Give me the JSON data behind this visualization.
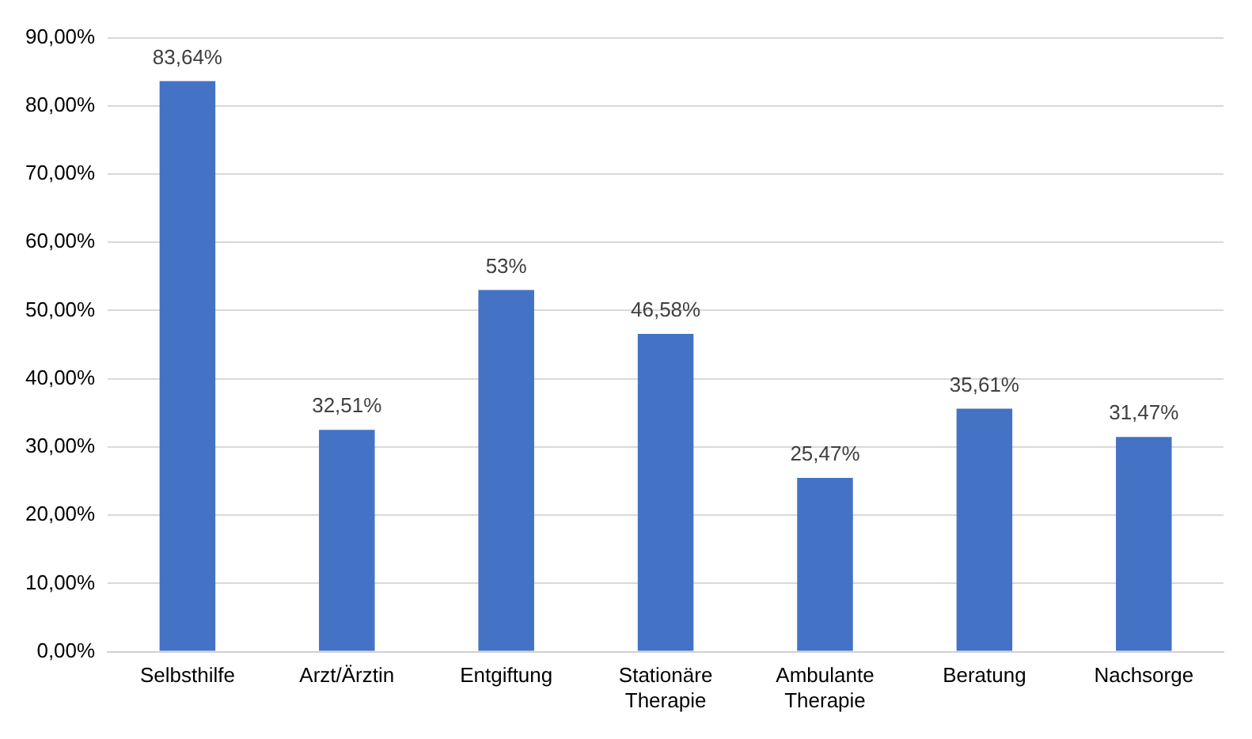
{
  "chart_data": {
    "type": "bar",
    "categories": [
      "Selbsthilfe",
      "Arzt/Ärztin",
      "Entgiftung",
      "Stationäre Therapie",
      "Ambulante Therapie",
      "Beratung",
      "Nachsorge"
    ],
    "values": [
      83.64,
      32.51,
      53,
      46.58,
      25.47,
      35.61,
      31.47
    ],
    "value_labels": [
      "83,64%",
      "32,51%",
      "53%",
      "46,58%",
      "25,47%",
      "35,61%",
      "31,47%"
    ],
    "color": "#4472c4",
    "ylim": [
      0,
      90
    ],
    "yticks": [
      {
        "value": 0,
        "label": "0,00%"
      },
      {
        "value": 10,
        "label": "10,00%"
      },
      {
        "value": 20,
        "label": "20,00%"
      },
      {
        "value": 30,
        "label": "30,00%"
      },
      {
        "value": 40,
        "label": "40,00%"
      },
      {
        "value": 50,
        "label": "50,00%"
      },
      {
        "value": 60,
        "label": "60,00%"
      },
      {
        "value": 70,
        "label": "70,00%"
      },
      {
        "value": 80,
        "label": "80,00%"
      },
      {
        "value": 90,
        "label": "90,00%"
      }
    ],
    "grid": "y"
  }
}
